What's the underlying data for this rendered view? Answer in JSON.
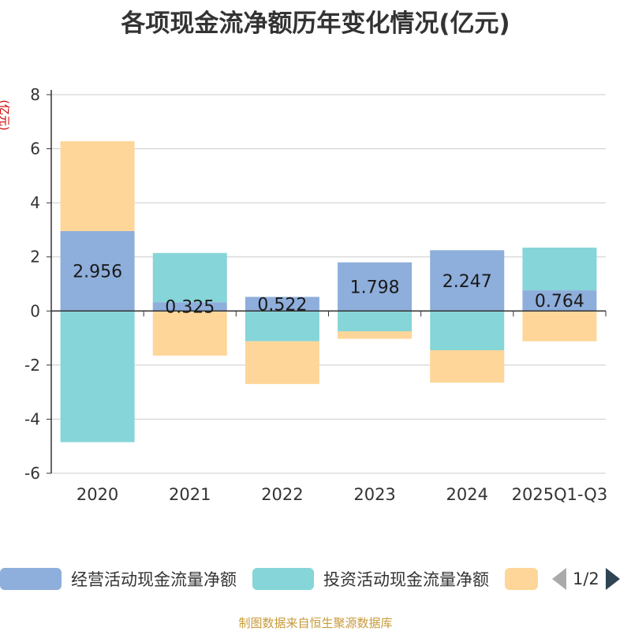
{
  "chart_data": {
    "type": "bar",
    "stacked": true,
    "title": "各项现金流净额历年变化情况(亿元)",
    "ylabel": "(亿元)",
    "categories": [
      "2020",
      "2021",
      "2022",
      "2023",
      "2024",
      "2025Q1-Q3"
    ],
    "ylim": [
      -6,
      8
    ],
    "yticks": [
      8,
      6,
      4,
      2,
      0,
      -2,
      -4,
      -6
    ],
    "series": [
      {
        "name": "经营活动现金流量净额",
        "color": "#8eaedb",
        "values": [
          2.956,
          0.325,
          0.522,
          1.798,
          2.247,
          0.764
        ],
        "labels": [
          "2.956",
          "0.325",
          "0.522",
          "1.798",
          "2.247",
          "0.764"
        ]
      },
      {
        "name": "投资活动现金流量净额",
        "color": "#86d5d8",
        "values": [
          -4.85,
          1.82,
          -1.12,
          -0.75,
          -1.45,
          1.58
        ]
      },
      {
        "name": "",
        "color": "#fed699",
        "values": [
          3.32,
          -1.65,
          -1.58,
          -0.28,
          -1.2,
          -1.12
        ]
      }
    ]
  },
  "legend": {
    "items": [
      {
        "label": "经营活动现金流量净额",
        "color": "#8eaedb"
      },
      {
        "label": "投资活动现金流量净额",
        "color": "#86d5d8"
      },
      {
        "label": "",
        "color": "#fed699"
      }
    ],
    "page": "1/2"
  },
  "footer": {
    "source": "制图数据来自恒生聚源数据库"
  }
}
